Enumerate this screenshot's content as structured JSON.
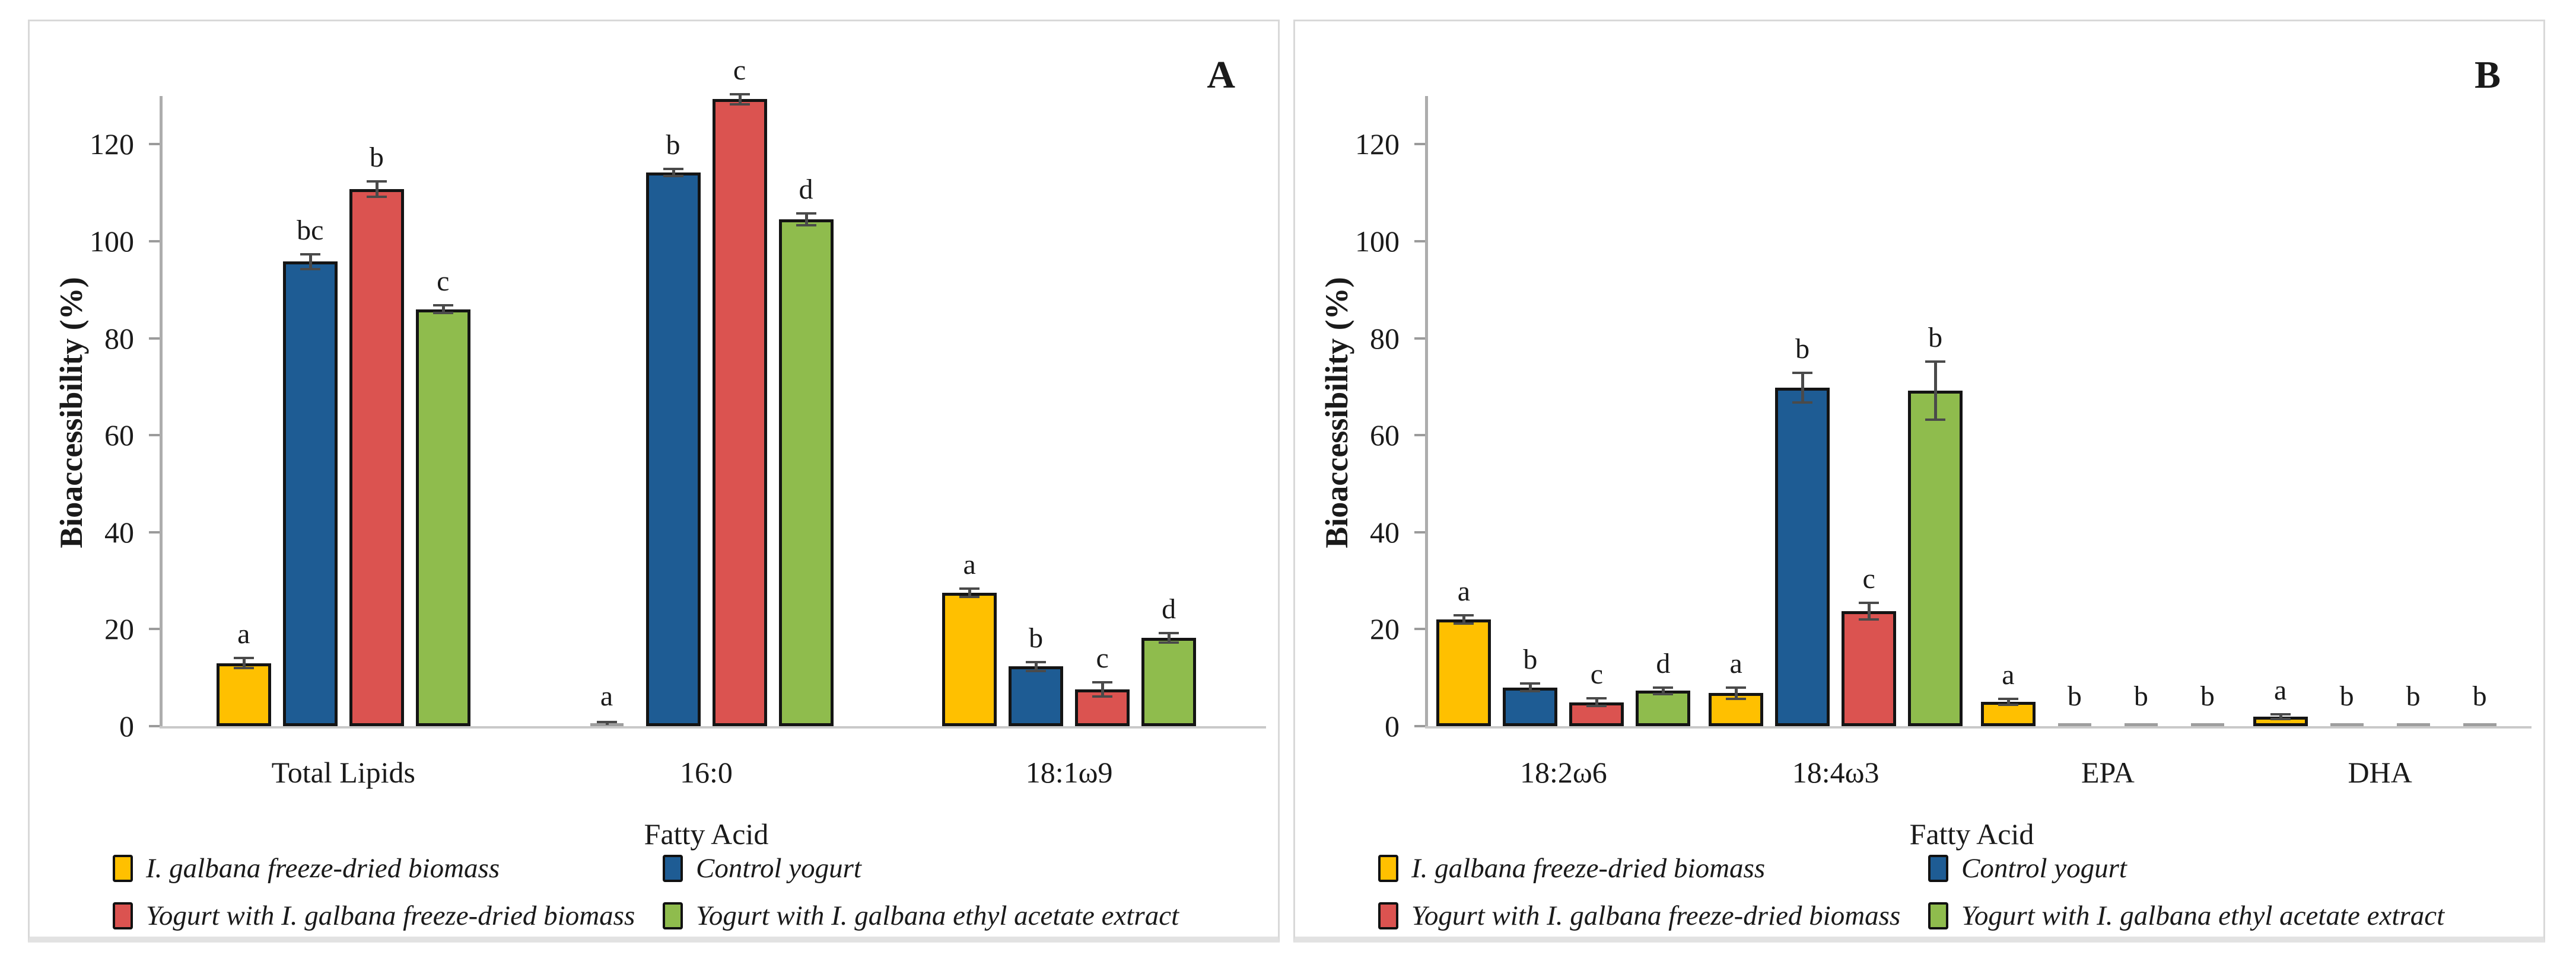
{
  "figure": {
    "description": "Two-panel grouped bar chart of fatty acid bioaccessibility",
    "panel_labels": [
      "A",
      "B"
    ]
  },
  "chart_data": [
    {
      "type": "bar",
      "panel_label": "A",
      "title": "",
      "xlabel": "Fatty Acid",
      "ylabel": "Bioaccessibility (%)",
      "ylim": [
        0,
        130
      ],
      "yticks": [
        0,
        20,
        40,
        60,
        80,
        100,
        120
      ],
      "grid": false,
      "legend_position": "bottom",
      "categories": [
        "Total Lipids",
        "16:0",
        "18:1ω9"
      ],
      "series": [
        {
          "name": "I. galbana freeze-dried biomass",
          "color": "#FFC000",
          "values": [
            13.0,
            0.3,
            27.5
          ],
          "errors": [
            1.0,
            0.5,
            0.9
          ],
          "letters": [
            "a",
            "a",
            "a"
          ]
        },
        {
          "name": "Control yogurt",
          "color": "#1E5C94",
          "values": [
            95.8,
            114.2,
            12.3
          ],
          "errors": [
            1.5,
            0.7,
            0.9
          ],
          "letters": [
            "bc",
            "b",
            "b"
          ]
        },
        {
          "name": "Yogurt with I. galbana freeze-dried biomass",
          "color": "#DB5350",
          "values": [
            110.8,
            129.3,
            7.6
          ],
          "errors": [
            1.6,
            1.0,
            1.5
          ],
          "letters": [
            "b",
            "c",
            "c"
          ]
        },
        {
          "name": "Yogurt with I. galbana ethyl acetate extract",
          "color": "#8FBC4D",
          "values": [
            86.0,
            104.5,
            18.2
          ],
          "errors": [
            0.8,
            1.2,
            1.0
          ],
          "letters": [
            "c",
            "d",
            "d"
          ]
        }
      ]
    },
    {
      "type": "bar",
      "panel_label": "B",
      "title": "",
      "xlabel": "Fatty Acid",
      "ylabel": "Bioaccessibility (%)",
      "ylim": [
        0,
        130
      ],
      "yticks": [
        0,
        20,
        40,
        60,
        80,
        100,
        120
      ],
      "grid": false,
      "legend_position": "bottom",
      "categories": [
        "18:2ω6",
        "18:4ω3",
        "EPA",
        "DHA"
      ],
      "series": [
        {
          "name": "I. galbana freeze-dried biomass",
          "color": "#FFC000",
          "values": [
            22.0,
            6.8,
            5.0,
            2.0
          ],
          "errors": [
            0.9,
            1.2,
            0.6,
            0.5
          ],
          "letters": [
            "a",
            "a",
            "a",
            "a"
          ]
        },
        {
          "name": "Control yogurt",
          "color": "#1E5C94",
          "values": [
            8.0,
            69.8,
            0.15,
            0.15
          ],
          "errors": [
            0.8,
            3.0,
            0,
            0
          ],
          "letters": [
            "b",
            "b",
            "b",
            "b"
          ]
        },
        {
          "name": "Yogurt with I. galbana freeze-dried biomass",
          "color": "#DB5350",
          "values": [
            4.9,
            23.7,
            0.15,
            0.15
          ],
          "errors": [
            0.8,
            1.7,
            0,
            0
          ],
          "letters": [
            "c",
            "c",
            "b",
            "b"
          ]
        },
        {
          "name": "Yogurt with I. galbana ethyl acetate extract",
          "color": "#8FBC4D",
          "values": [
            7.3,
            69.2,
            0.15,
            0.15
          ],
          "errors": [
            0.7,
            6.0,
            0,
            0
          ],
          "letters": [
            "d",
            "b",
            "b",
            "b"
          ]
        }
      ]
    }
  ]
}
